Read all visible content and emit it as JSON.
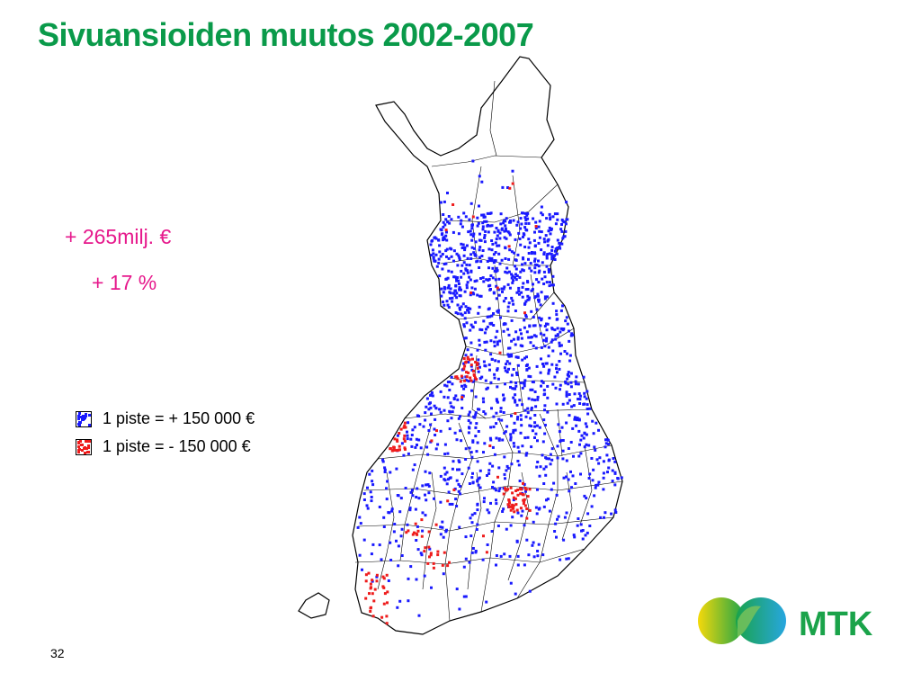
{
  "slide": {
    "title": "Sivuansioiden muutos 2002-2007",
    "page_number": "32"
  },
  "summary": {
    "amount_change": "+ 265milj. €",
    "percent_change": "+ 17 %"
  },
  "legend": {
    "items": [
      {
        "label": "1 piste = + 150 000 €",
        "color": "#1a1aff"
      },
      {
        "label": "1 piste = - 150 000 €",
        "color": "#ee1c1c"
      }
    ]
  },
  "logo": {
    "text": "MTK",
    "colors": {
      "yellow": "#f5d90a",
      "green": "#1aa34a",
      "blue": "#27a6e0"
    }
  },
  "colors": {
    "title": "#0a9a4a",
    "summary_text": "#e6198c",
    "positive_dot": "#1a1aff",
    "negative_dot": "#ee1c1c",
    "map_outline": "#000000"
  }
}
